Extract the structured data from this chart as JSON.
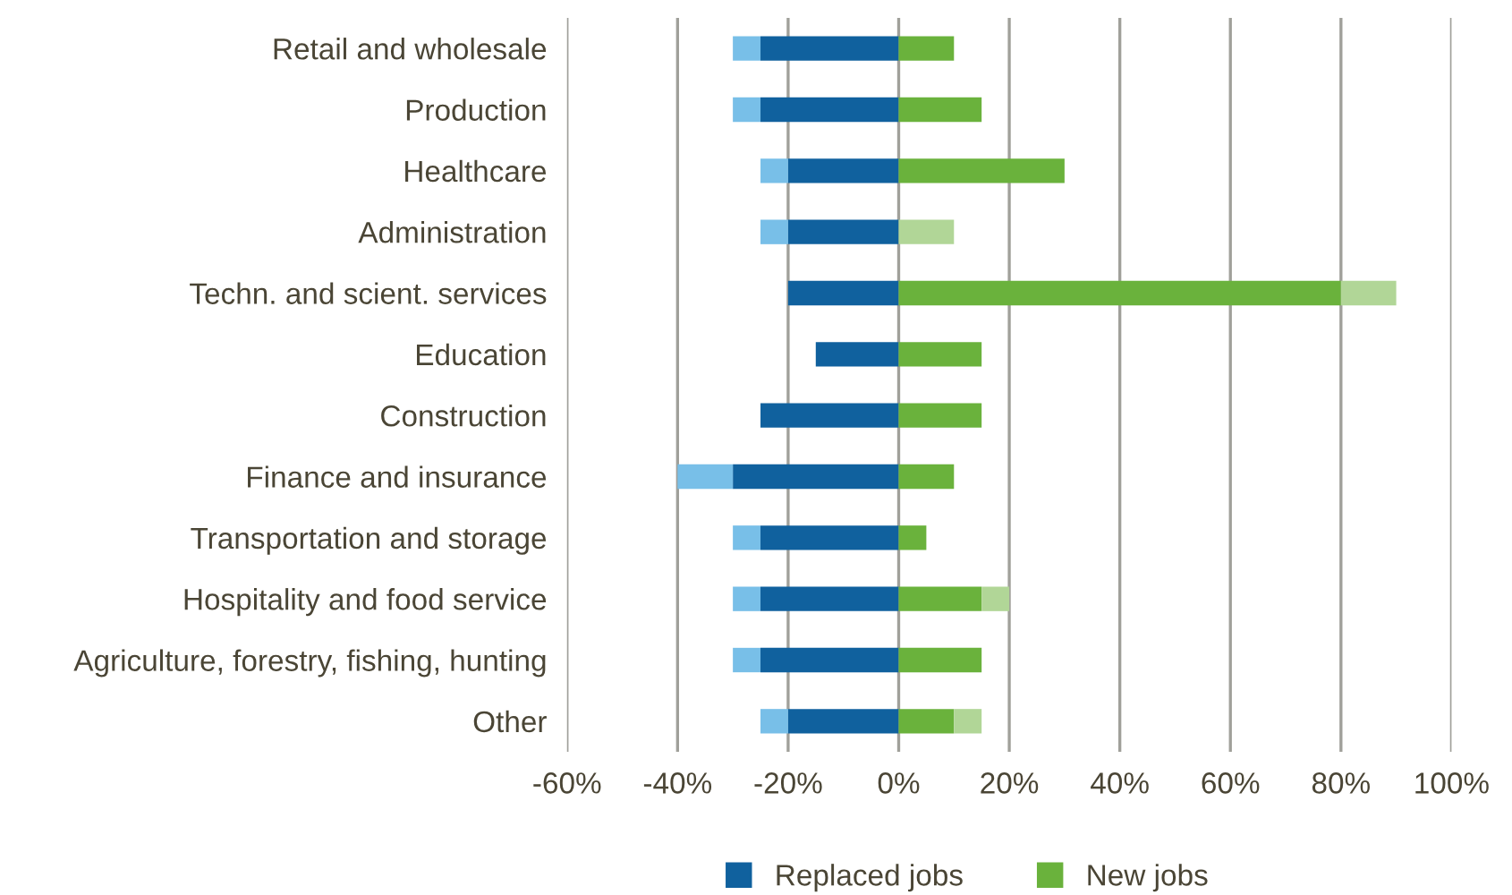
{
  "chart_data": {
    "type": "bar",
    "orientation": "horizontal",
    "stacked": true,
    "categories": [
      "Retail and wholesale",
      "Production",
      "Healthcare",
      "Administration",
      "Techn. and scient. services",
      "Education",
      "Construction",
      "Finance and insurance",
      "Transportation and storage",
      "Hospitality and food service",
      "Agriculture, forestry, fishing, hunting",
      "Other"
    ],
    "series": [
      {
        "name": "Replaced jobs",
        "color": "#10619e",
        "values": [
          -25,
          -25,
          -20,
          -20,
          -20,
          -15,
          -25,
          -30,
          -25,
          -25,
          -25,
          -20
        ]
      },
      {
        "color": "#78bfe8",
        "values": [
          -5,
          -5,
          -5,
          -5,
          0,
          0,
          0,
          -10,
          -5,
          -5,
          -5,
          -5
        ]
      },
      {
        "name": "New jobs",
        "color": "#6ab23c",
        "values": [
          10,
          15,
          30,
          0,
          80,
          15,
          15,
          10,
          5,
          15,
          15,
          10
        ]
      },
      {
        "color": "#b1d697",
        "values": [
          0,
          0,
          0,
          10,
          10,
          0,
          0,
          0,
          0,
          5,
          0,
          5
        ]
      }
    ],
    "xlim": [
      -60,
      100
    ],
    "xticks": [
      {
        "value": -60,
        "label": "-60%"
      },
      {
        "value": -40,
        "label": "-40%"
      },
      {
        "value": -20,
        "label": "-20%"
      },
      {
        "value": 0,
        "label": "0%"
      },
      {
        "value": 20,
        "label": "20%"
      },
      {
        "value": 40,
        "label": "40%"
      },
      {
        "value": 60,
        "label": "60%"
      },
      {
        "value": 80,
        "label": "80%"
      },
      {
        "value": 100,
        "label": "100%"
      }
    ],
    "grid": "x",
    "legend": "bottom"
  }
}
